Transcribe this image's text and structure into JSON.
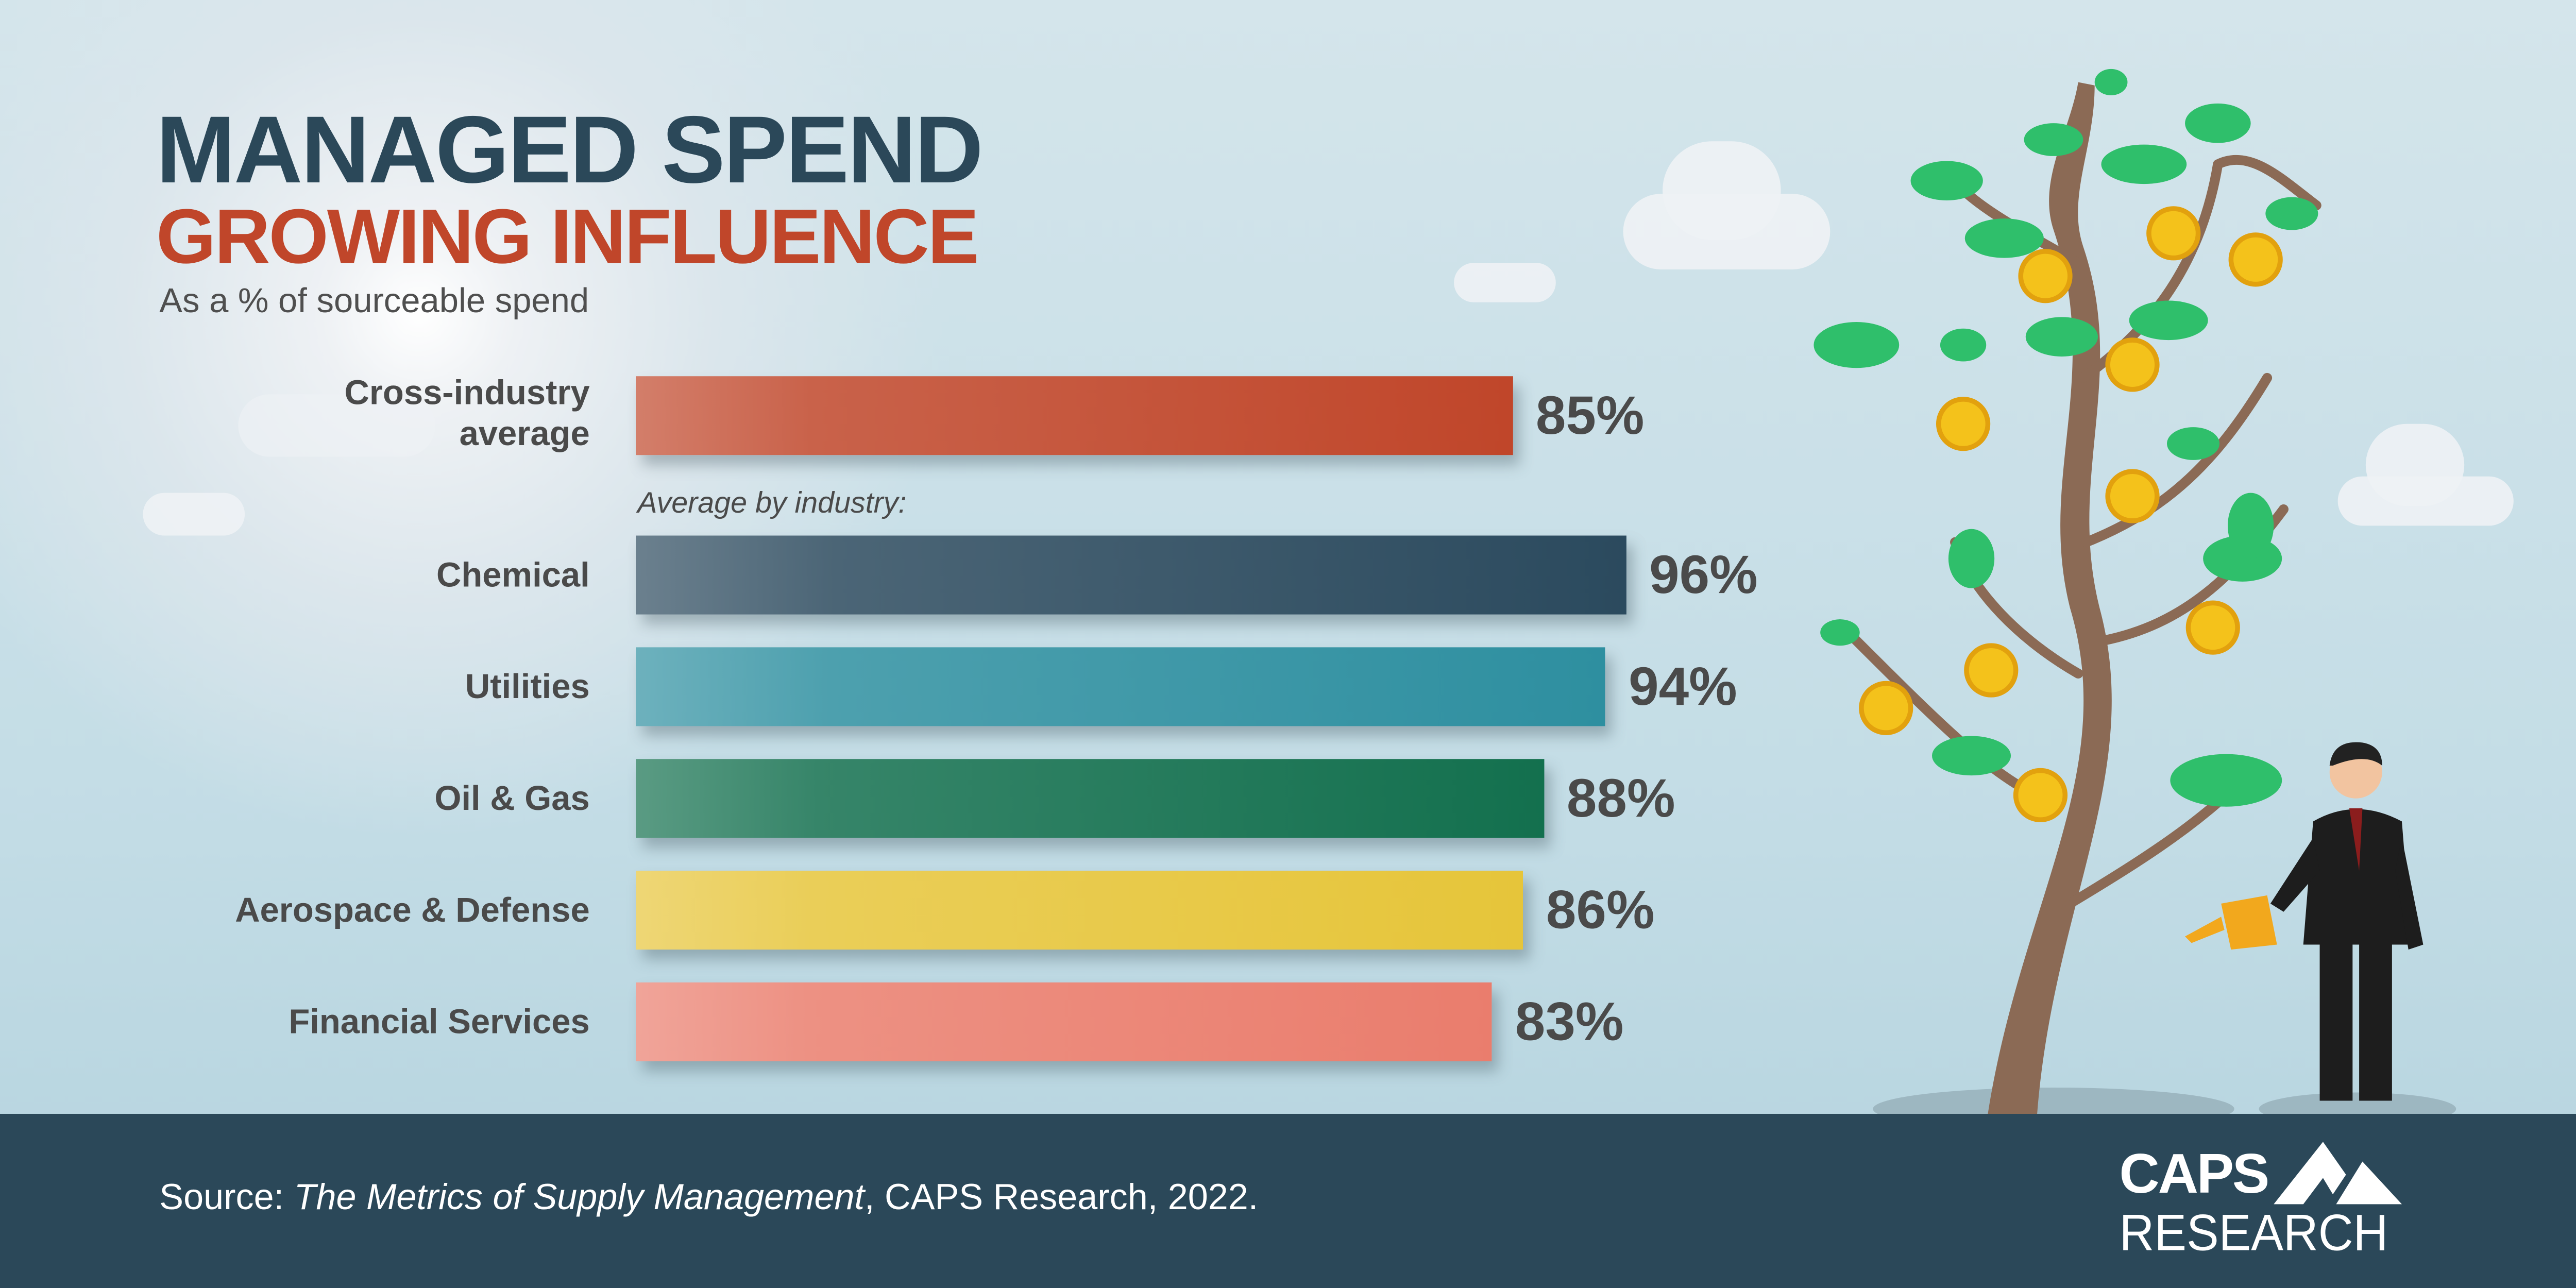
{
  "header": {
    "title_line1": "MANAGED SPEND",
    "title_line2": "GROWING INFLUENCE",
    "subtitle": "As a % of sourceable spend"
  },
  "chart_data": {
    "type": "bar",
    "orientation": "horizontal",
    "title": "MANAGED SPEND GROWING INFLUENCE",
    "subtitle": "As a % of sourceable spend",
    "section_label": "Average by industry:",
    "categories": [
      "Cross-industry average",
      "Chemical",
      "Utilities",
      "Oil & Gas",
      "Aerospace & Defense",
      "Financial Services"
    ],
    "values": [
      85,
      96,
      94,
      88,
      86,
      83
    ],
    "data_labels": [
      "85%",
      "96%",
      "94%",
      "88%",
      "86%",
      "83%"
    ],
    "colors": [
      "#c0462a",
      "#2b4a5e",
      "#2e8fa0",
      "#13704e",
      "#e6c53a",
      "#ea7d6d"
    ],
    "unit": "%",
    "xlim": [
      0,
      100
    ],
    "grid": false,
    "legend": "none"
  },
  "labels": {
    "cross_line1": "Cross-industry",
    "cross_line2": "average"
  },
  "footer": {
    "source_prefix": "Source: ",
    "source_title": "The Metrics of Supply Management",
    "source_suffix": ", CAPS Research, 2022.",
    "logo_text_top": "CAPS",
    "logo_text_bottom": "RESEARCH",
    "background": "#2b4859"
  },
  "illustration": {
    "icons": [
      "money-tree-icon",
      "dollar-coin-icon",
      "businessman-icon",
      "watering-can-icon",
      "cloud-icon"
    ]
  }
}
